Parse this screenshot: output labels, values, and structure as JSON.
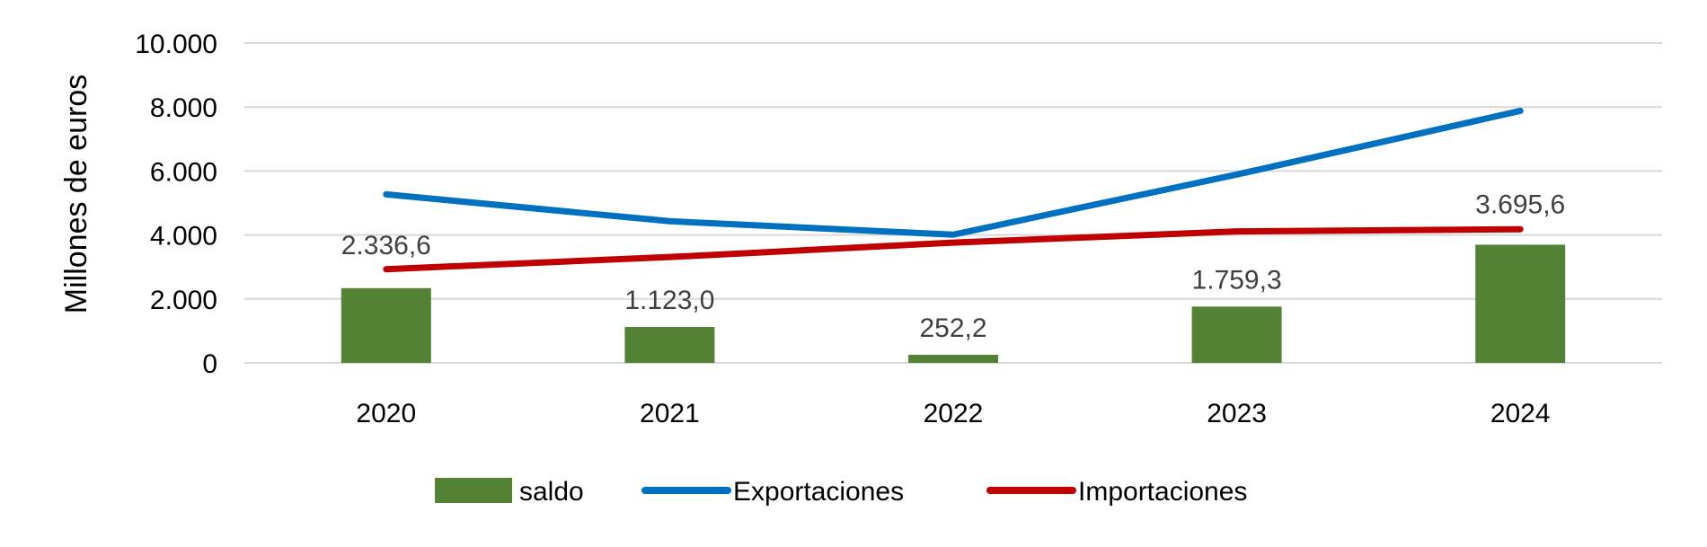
{
  "chart_data": {
    "type": "bar+line",
    "categories": [
      "2020",
      "2021",
      "2022",
      "2023",
      "2024"
    ],
    "ylabel": "Millones de euros",
    "ylim": [
      0,
      10000
    ],
    "yticks": [
      0,
      2000,
      4000,
      6000,
      8000,
      10000
    ],
    "ytick_labels": [
      "0",
      "2.000",
      "4.000",
      "6.000",
      "8.000",
      "10.000"
    ],
    "grid": true,
    "legend_position": "bottom",
    "series": [
      {
        "name": "saldo",
        "kind": "bar",
        "color": "#548235",
        "values": [
          2336.6,
          1123.0,
          252.2,
          1759.3,
          3695.6
        ],
        "labels": [
          "2.336,6",
          "1.123,0",
          "252,2",
          "1.759,3",
          "3.695,6"
        ]
      },
      {
        "name": "Exportaciones",
        "kind": "line",
        "color": "#0070C0",
        "values": [
          5270,
          4430,
          4010,
          5890,
          7880
        ]
      },
      {
        "name": "Importaciones",
        "kind": "line",
        "color": "#C00000",
        "values": [
          2930,
          3310,
          3760,
          4110,
          4180
        ]
      }
    ]
  }
}
